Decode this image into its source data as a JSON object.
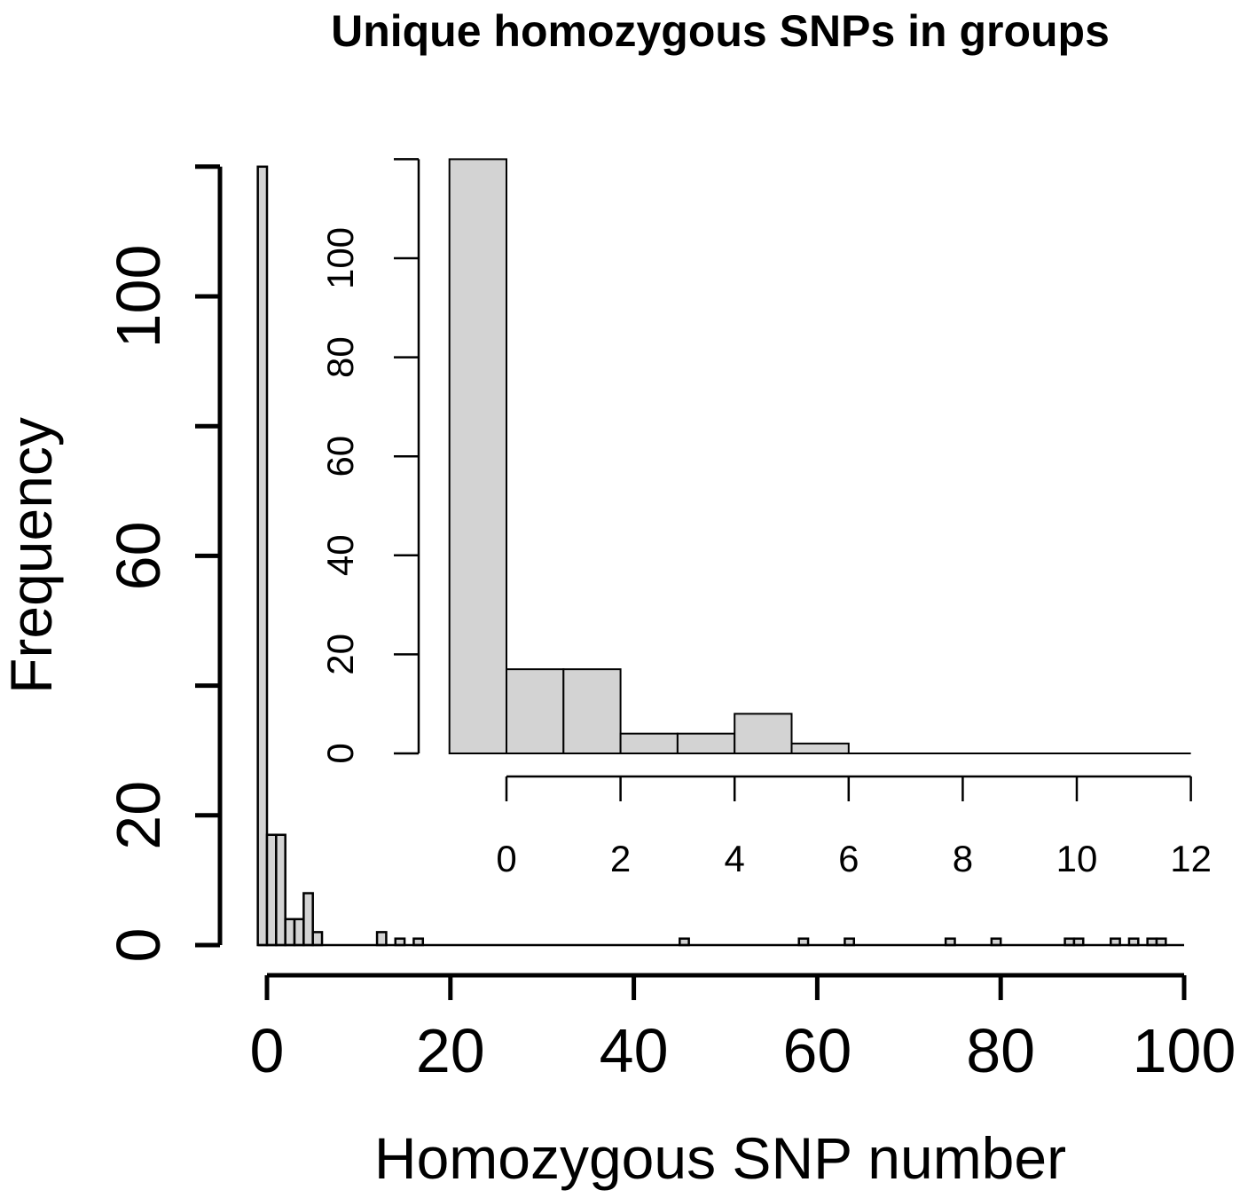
{
  "chart_data": [
    {
      "type": "bar",
      "role": "main",
      "title": "Unique homozygous SNPs in groups",
      "xlabel": "Homozygous SNP number",
      "ylabel": "Frequency",
      "xlim": [
        0,
        100
      ],
      "ylim": [
        0,
        120
      ],
      "x_ticks": [
        0,
        20,
        40,
        60,
        80,
        100
      ],
      "y_ticks": [
        0,
        20,
        60,
        100
      ],
      "y_tick_marks": [
        0,
        20,
        40,
        60,
        80,
        100,
        120
      ],
      "bin_width": 1,
      "bins": [
        {
          "start": -1,
          "count": 120
        },
        {
          "start": 0,
          "count": 17
        },
        {
          "start": 1,
          "count": 17
        },
        {
          "start": 2,
          "count": 4
        },
        {
          "start": 3,
          "count": 4
        },
        {
          "start": 4,
          "count": 8
        },
        {
          "start": 5,
          "count": 2
        },
        {
          "start": 12,
          "count": 2
        },
        {
          "start": 14,
          "count": 1
        },
        {
          "start": 16,
          "count": 1
        },
        {
          "start": 45,
          "count": 1
        },
        {
          "start": 58,
          "count": 1
        },
        {
          "start": 63,
          "count": 1
        },
        {
          "start": 74,
          "count": 1
        },
        {
          "start": 79,
          "count": 1
        },
        {
          "start": 87,
          "count": 1
        },
        {
          "start": 88,
          "count": 1
        },
        {
          "start": 92,
          "count": 1
        },
        {
          "start": 94,
          "count": 1
        },
        {
          "start": 96,
          "count": 1
        },
        {
          "start": 97,
          "count": 1
        }
      ]
    },
    {
      "type": "bar",
      "role": "inset",
      "xlim": [
        0,
        12
      ],
      "ylim": [
        0,
        120
      ],
      "x_ticks": [
        0,
        2,
        4,
        6,
        8,
        10,
        12
      ],
      "y_ticks": [
        0,
        20,
        40,
        60,
        80,
        100
      ],
      "y_tick_marks": [
        0,
        20,
        40,
        60,
        80,
        100,
        120
      ],
      "bin_width": 1,
      "bins": [
        {
          "start": -1,
          "count": 120
        },
        {
          "start": 0,
          "count": 17
        },
        {
          "start": 1,
          "count": 17
        },
        {
          "start": 2,
          "count": 4
        },
        {
          "start": 3,
          "count": 4
        },
        {
          "start": 4,
          "count": 8
        },
        {
          "start": 5,
          "count": 2
        }
      ]
    }
  ]
}
